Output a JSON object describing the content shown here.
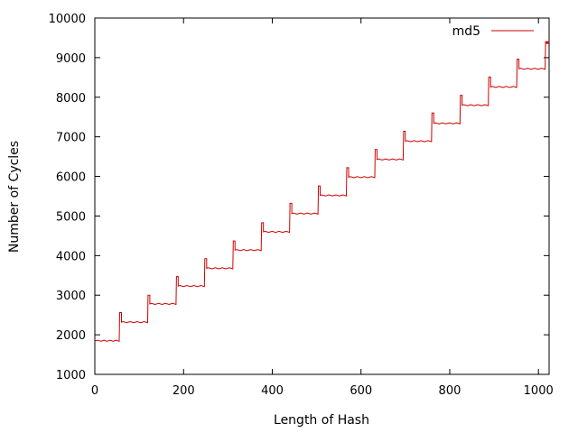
{
  "chart_data": {
    "type": "line",
    "title": "",
    "xlabel": "Length of Hash",
    "ylabel": "Number of Cycles",
    "xlim": [
      0,
      1024
    ],
    "ylim": [
      1000,
      10000
    ],
    "x_ticks": [
      0,
      200,
      400,
      600,
      800,
      1000
    ],
    "y_ticks": [
      1000,
      2000,
      3000,
      4000,
      5000,
      6000,
      7000,
      8000,
      9000,
      10000
    ],
    "grid": false,
    "legend_position": "top-right",
    "series": [
      {
        "name": "md5",
        "color": "#cc0000",
        "segments": [
          {
            "x_start": 0,
            "x_end": 55,
            "y": 1850,
            "peak": 1850
          },
          {
            "x_start": 56,
            "x_end": 119,
            "y": 2320,
            "peak": 2560
          },
          {
            "x_start": 120,
            "x_end": 183,
            "y": 2780,
            "peak": 3000
          },
          {
            "x_start": 184,
            "x_end": 247,
            "y": 3230,
            "peak": 3470
          },
          {
            "x_start": 248,
            "x_end": 311,
            "y": 3680,
            "peak": 3920
          },
          {
            "x_start": 312,
            "x_end": 375,
            "y": 4140,
            "peak": 4370
          },
          {
            "x_start": 376,
            "x_end": 439,
            "y": 4600,
            "peak": 4830
          },
          {
            "x_start": 440,
            "x_end": 503,
            "y": 5060,
            "peak": 5320
          },
          {
            "x_start": 504,
            "x_end": 567,
            "y": 5520,
            "peak": 5760
          },
          {
            "x_start": 568,
            "x_end": 631,
            "y": 5980,
            "peak": 6220
          },
          {
            "x_start": 632,
            "x_end": 695,
            "y": 6430,
            "peak": 6680
          },
          {
            "x_start": 696,
            "x_end": 759,
            "y": 6890,
            "peak": 7140
          },
          {
            "x_start": 760,
            "x_end": 823,
            "y": 7340,
            "peak": 7600
          },
          {
            "x_start": 824,
            "x_end": 887,
            "y": 7800,
            "peak": 8050
          },
          {
            "x_start": 888,
            "x_end": 951,
            "y": 8260,
            "peak": 8510
          },
          {
            "x_start": 952,
            "x_end": 1015,
            "y": 8720,
            "peak": 8960
          },
          {
            "x_start": 1016,
            "x_end": 1024,
            "y": 9380,
            "peak": 9400
          }
        ]
      }
    ]
  }
}
